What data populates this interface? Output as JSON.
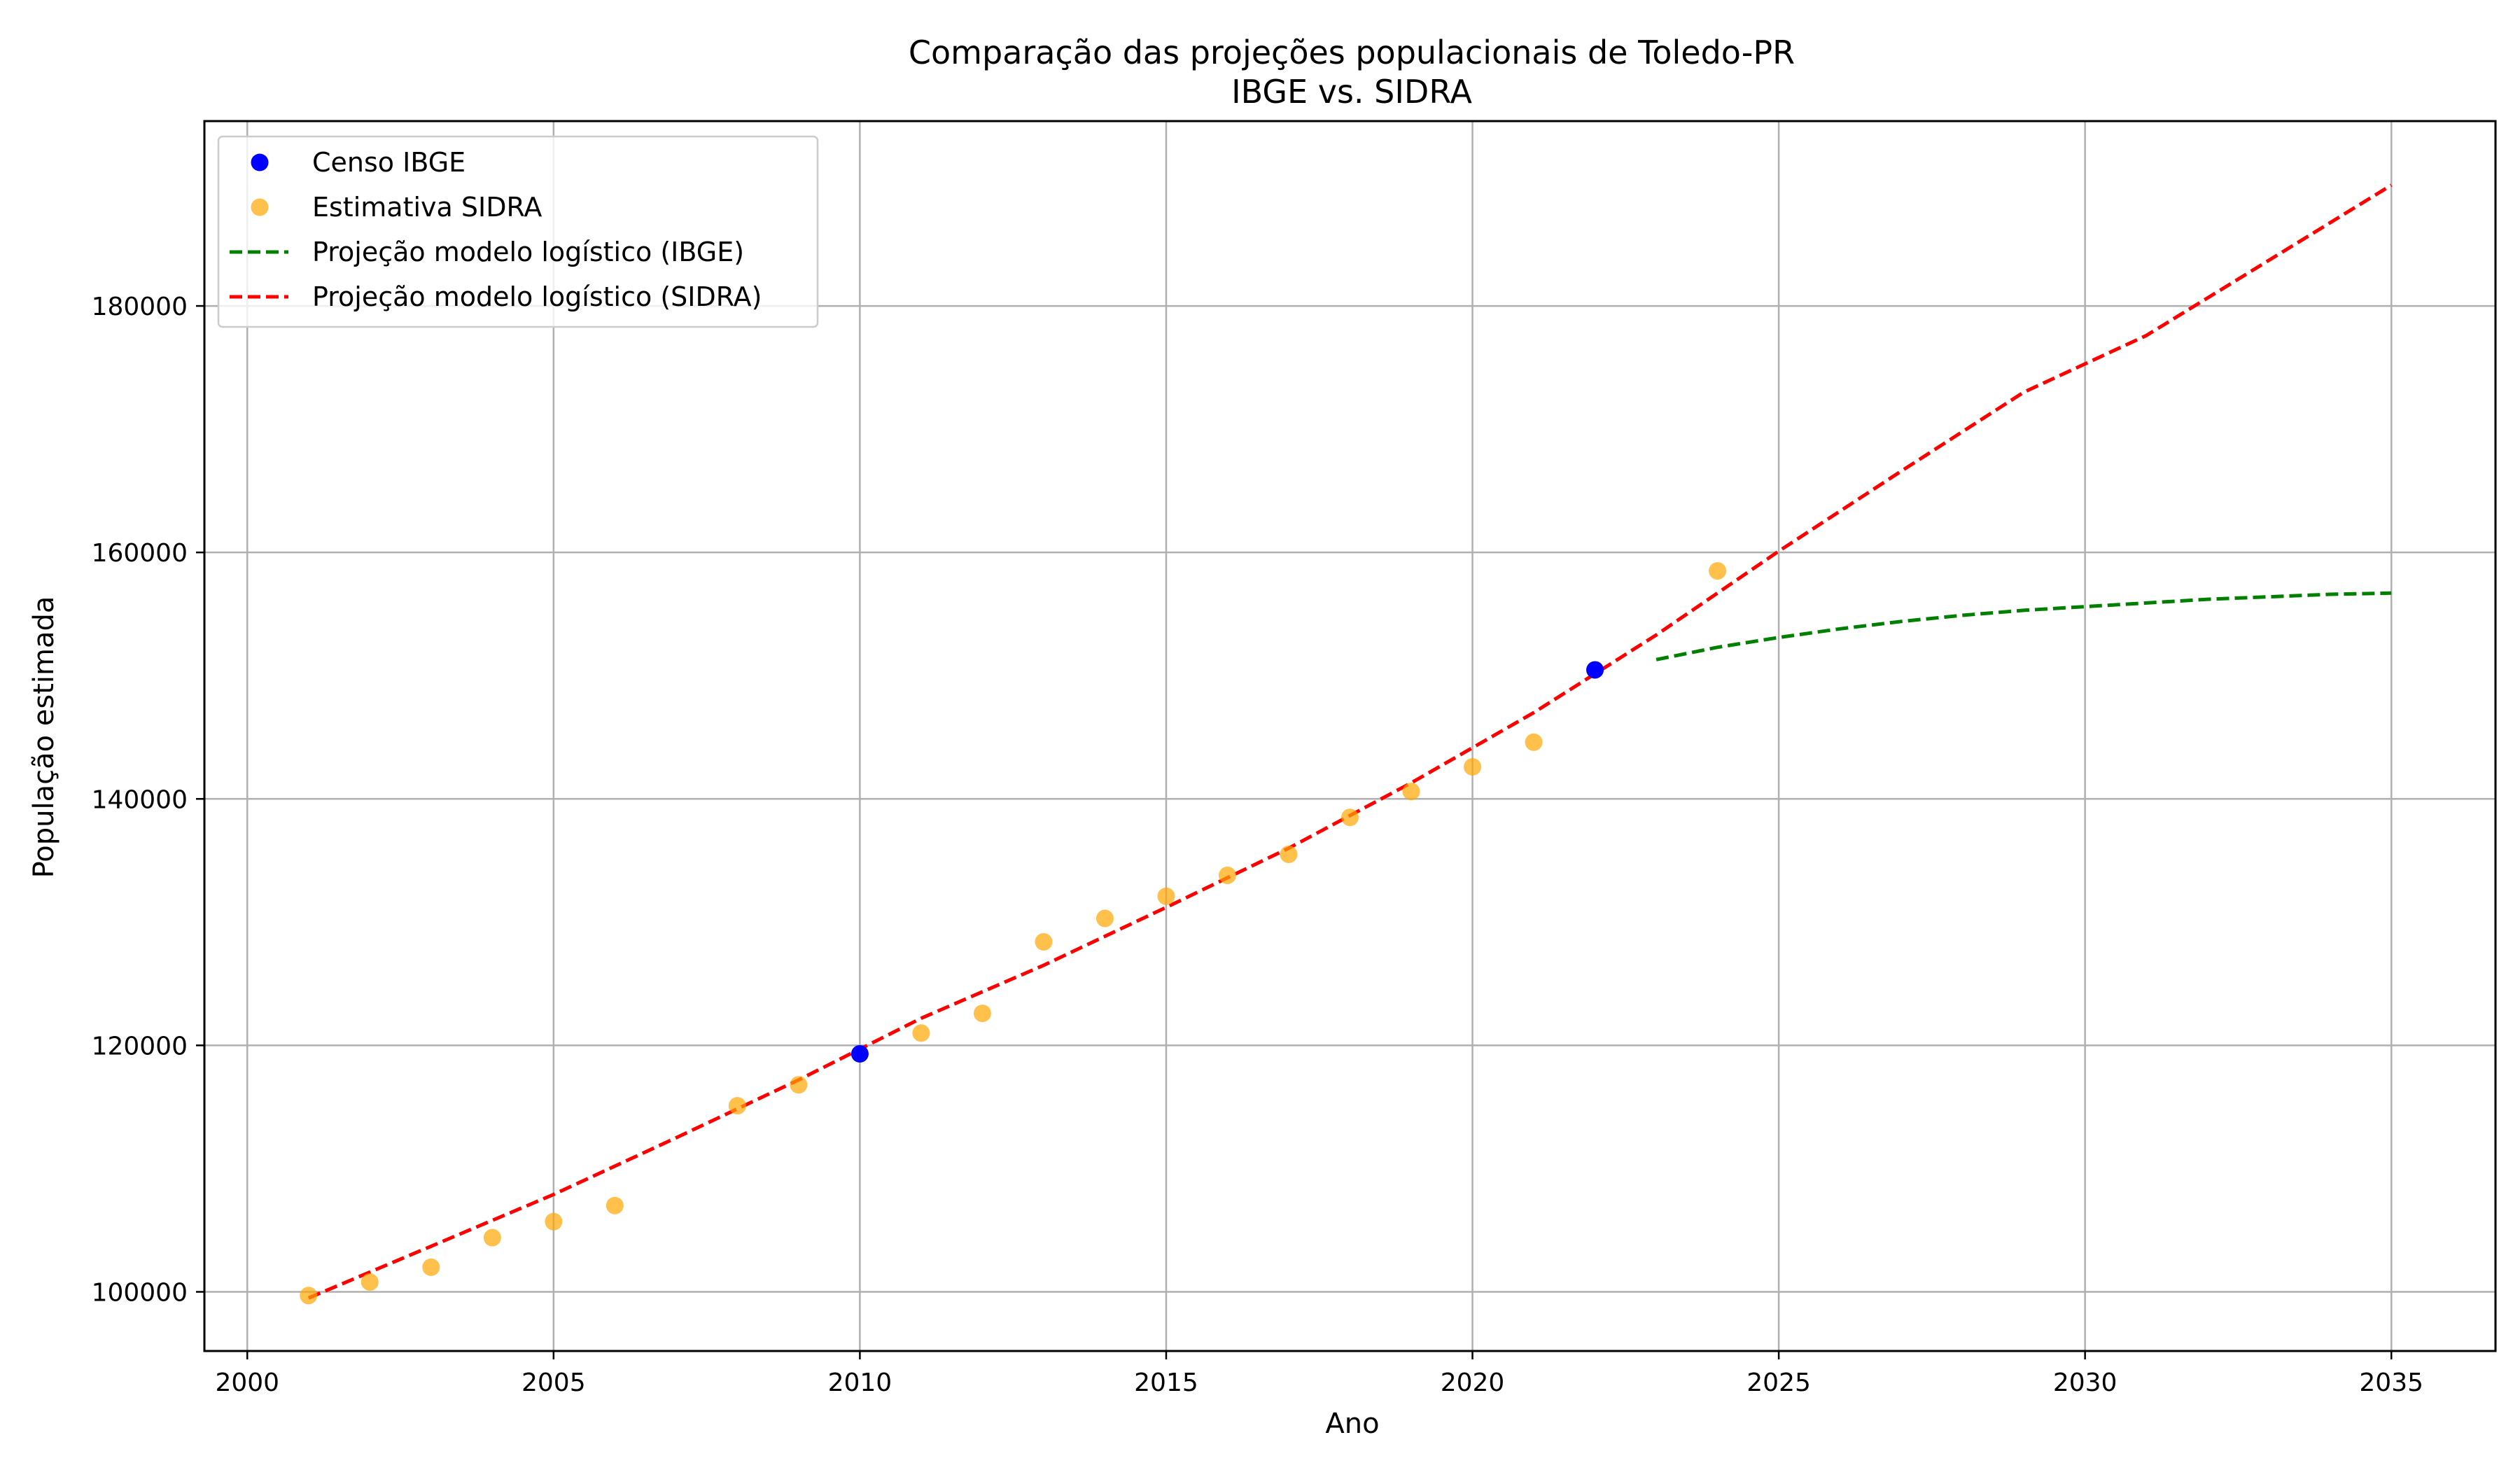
{
  "chart_data": {
    "type": "scatter",
    "title": "Comparação das projeções populacionais de Toledo-PR",
    "subtitle": "IBGE vs. SIDRA",
    "xlabel": "Ano",
    "ylabel": "População estimada",
    "xlim": [
      1999.3,
      2036.7
    ],
    "ylim": [
      95200,
      195000
    ],
    "xticks": [
      2000,
      2005,
      2010,
      2015,
      2020,
      2025,
      2030,
      2035
    ],
    "yticks": [
      100000,
      120000,
      140000,
      160000,
      180000
    ],
    "grid": true,
    "legend_position": "top-left",
    "series": [
      {
        "name": "Censo IBGE",
        "kind": "scatter",
        "color": "#0000ff",
        "x": [
          2010,
          2022
        ],
        "y": [
          119313,
          150470
        ]
      },
      {
        "name": "Estimativa SIDRA",
        "kind": "scatter",
        "color": "#ffa500",
        "x": [
          2001,
          2002,
          2003,
          2004,
          2005,
          2006,
          2008,
          2009,
          2011,
          2012,
          2013,
          2014,
          2015,
          2016,
          2017,
          2018,
          2019,
          2020,
          2021,
          2024
        ],
        "y": [
          99700,
          100800,
          102000,
          104400,
          105700,
          107000,
          115100,
          116800,
          121000,
          122600,
          128400,
          130300,
          132100,
          133800,
          135500,
          138500,
          140600,
          142600,
          144600,
          158500
        ]
      },
      {
        "name": "Projeção modelo logístico (IBGE)",
        "kind": "line",
        "dashed": true,
        "color": "#008000",
        "x": [
          2023,
          2024,
          2025,
          2026,
          2027,
          2028,
          2029,
          2030,
          2031,
          2032,
          2033,
          2034,
          2035
        ],
        "y": [
          151300,
          152300,
          153100,
          153800,
          154400,
          154900,
          155300,
          155600,
          155900,
          156200,
          156400,
          156600,
          156700
        ]
      },
      {
        "name": "Projeção modelo logístico (SIDRA)",
        "kind": "line",
        "dashed": true,
        "color": "#ff0000",
        "x": [
          2001,
          2003,
          2005,
          2007,
          2009,
          2011,
          2013,
          2015,
          2017,
          2019,
          2021,
          2023,
          2025,
          2027,
          2029,
          2031,
          2033,
          2035
        ],
        "y": [
          99500,
          103700,
          107900,
          112500,
          117200,
          122200,
          126500,
          131200,
          136000,
          141300,
          147000,
          153300,
          160100,
          166600,
          173000,
          177600,
          183700,
          189800
        ]
      }
    ]
  }
}
